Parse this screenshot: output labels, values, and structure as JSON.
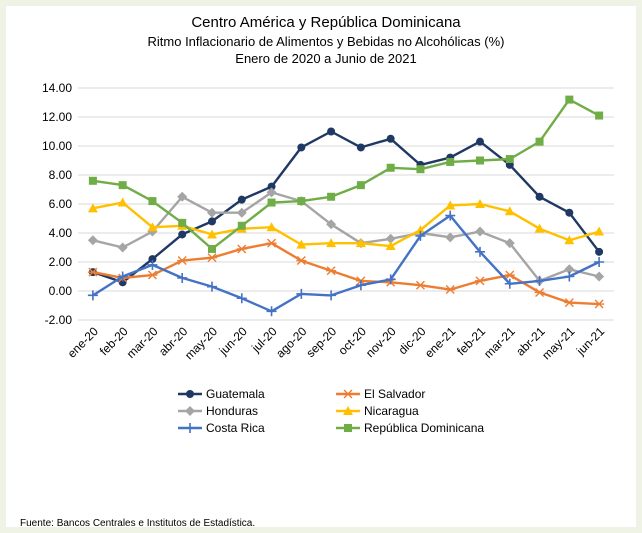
{
  "chart_data": {
    "type": "line",
    "title": "Centro América y República Dominicana",
    "subtitle": "Ritmo Inflacionario de Alimentos y Bebidas no Alcohólicas (%)",
    "subtitle2": "Enero de 2020 a Junio de 2021",
    "xlabel": "",
    "ylabel": "",
    "ylim": [
      -2,
      14
    ],
    "yticks": [
      "14.00",
      "12.00",
      "10.00",
      "8.00",
      "6.00",
      "4.00",
      "2.00",
      "0.00",
      "-2.00"
    ],
    "grid": true,
    "legend_position": "bottom",
    "categories": [
      "ene-20",
      "feb-20",
      "mar-20",
      "abr-20",
      "may-20",
      "jun-20",
      "jul-20",
      "ago-20",
      "sep-20",
      "oct-20",
      "nov-20",
      "dic-20",
      "ene-21",
      "feb-21",
      "mar-21",
      "abr-21",
      "may-21",
      "jun-21"
    ],
    "series": [
      {
        "name": "Guatemala",
        "color": "#1f3864",
        "marker": "circle",
        "values": [
          1.3,
          0.6,
          2.2,
          3.9,
          4.8,
          6.3,
          7.2,
          9.9,
          11.0,
          9.9,
          10.5,
          8.7,
          9.2,
          10.3,
          8.7,
          6.5,
          5.4,
          2.7
        ]
      },
      {
        "name": "El Salvador",
        "color": "#ed7d31",
        "marker": "star",
        "values": [
          1.3,
          0.9,
          1.1,
          2.1,
          2.3,
          2.9,
          3.3,
          2.1,
          1.4,
          0.7,
          0.6,
          0.4,
          0.1,
          0.7,
          1.1,
          -0.1,
          -0.8,
          -0.9
        ]
      },
      {
        "name": "Honduras",
        "color": "#a5a5a5",
        "marker": "diamond",
        "values": [
          3.5,
          3.0,
          4.1,
          6.5,
          5.4,
          5.4,
          6.8,
          6.2,
          4.6,
          3.3,
          3.6,
          4.0,
          3.7,
          4.1,
          3.3,
          0.7,
          1.5,
          1.0
        ]
      },
      {
        "name": "Nicaragua",
        "color": "#ffc000",
        "marker": "triangle",
        "values": [
          5.7,
          6.1,
          4.4,
          4.5,
          3.9,
          4.3,
          4.4,
          3.2,
          3.3,
          3.3,
          3.1,
          4.2,
          5.9,
          6.0,
          5.5,
          4.3,
          3.5,
          4.1
        ]
      },
      {
        "name": "Costa Rica",
        "color": "#4472c4",
        "marker": "plus",
        "values": [
          -0.3,
          1.0,
          1.8,
          0.9,
          0.3,
          -0.5,
          -1.4,
          -0.2,
          -0.3,
          0.4,
          0.8,
          3.8,
          5.2,
          2.7,
          0.5,
          0.7,
          1.0,
          2.0
        ]
      },
      {
        "name": "República Dominicana",
        "color": "#70ad47",
        "marker": "square",
        "values": [
          7.6,
          7.3,
          6.2,
          4.7,
          2.9,
          4.5,
          6.1,
          6.2,
          6.5,
          7.3,
          8.5,
          8.4,
          8.9,
          9.0,
          9.1,
          10.3,
          13.2,
          12.1
        ]
      }
    ],
    "source": "Fuente: Bancos Centrales e Institutos de Estadística."
  }
}
